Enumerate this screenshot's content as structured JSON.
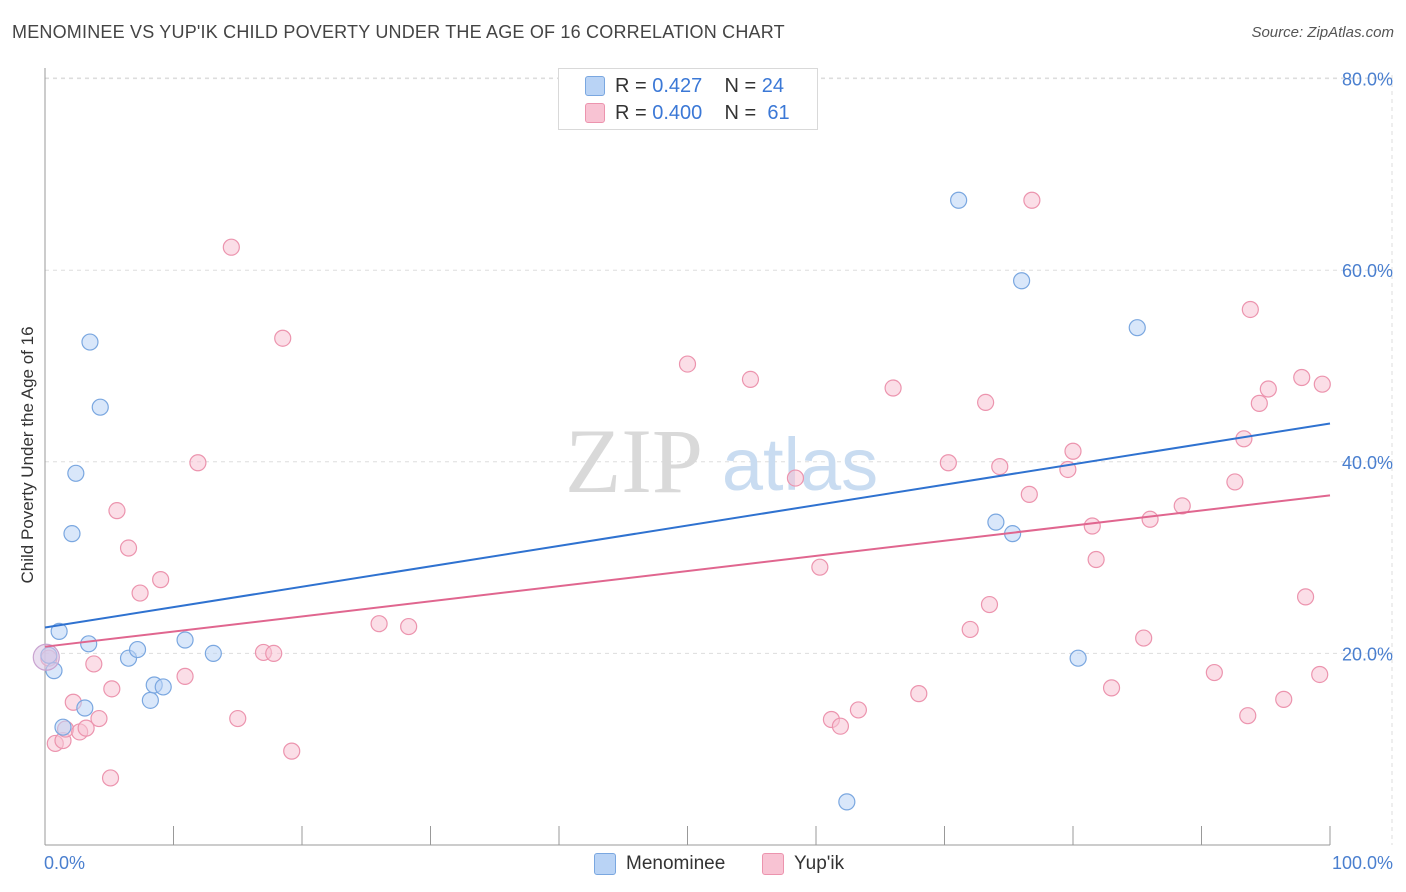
{
  "header": {
    "title": "MENOMINEE VS YUP'IK CHILD POVERTY UNDER THE AGE OF 16 CORRELATION CHART",
    "source": "Source: ZipAtlas.com"
  },
  "watermark": {
    "zip": "ZIP",
    "atlas": "atlas"
  },
  "legend_top": {
    "menominee": {
      "r_label": "R =",
      "r_value": "0.427",
      "n_label": "N =",
      "n_value": "24"
    },
    "yupik": {
      "r_label": "R =",
      "r_value": "0.400",
      "n_label": "N =",
      "n_value": "61"
    }
  },
  "legend_bottom": {
    "menominee": "Menominee",
    "yupik": "Yup'ik"
  },
  "colors": {
    "menominee_fill": "#b9d3f5",
    "menominee_stroke": "#7aa7e0",
    "menominee_line": "#2f72d0",
    "yupik_fill": "#f8c3d3",
    "yupik_stroke": "#ec94ae",
    "yupik_line": "#e0668f",
    "tick_text": "#4a7fcf",
    "grid": "#dddddd"
  },
  "chart_data": {
    "type": "scatter",
    "title": "MENOMINEE VS YUP'IK CHILD POVERTY UNDER THE AGE OF 16 CORRELATION CHART",
    "xlabel": "",
    "ylabel": "Child Poverty Under the Age of 16",
    "xlim": [
      0,
      100
    ],
    "ylim": [
      0,
      82
    ],
    "x_tick_labels": [
      "0.0%",
      "100.0%"
    ],
    "y_ticks": [
      20,
      40,
      60,
      80
    ],
    "y_tick_labels": [
      "20.0%",
      "40.0%",
      "60.0%",
      "80.0%"
    ],
    "grid": true,
    "legend": "top-center",
    "series": [
      {
        "name": "Menominee",
        "r": 0.427,
        "n": 24,
        "trend": {
          "x": [
            0,
            100
          ],
          "y": [
            22.7,
            44.0
          ]
        },
        "points": [
          [
            0.3,
            19.8
          ],
          [
            0.7,
            18.2
          ],
          [
            1.1,
            22.3
          ],
          [
            1.4,
            12.3
          ],
          [
            2.1,
            32.5
          ],
          [
            2.4,
            38.8
          ],
          [
            3.1,
            14.3
          ],
          [
            3.4,
            21.0
          ],
          [
            3.5,
            52.5
          ],
          [
            4.3,
            45.7
          ],
          [
            6.5,
            19.5
          ],
          [
            7.2,
            20.4
          ],
          [
            8.2,
            15.1
          ],
          [
            8.5,
            16.7
          ],
          [
            9.2,
            16.5
          ],
          [
            10.9,
            21.4
          ],
          [
            13.1,
            20.0
          ],
          [
            62.4,
            4.5
          ],
          [
            71.1,
            67.3
          ],
          [
            74.0,
            33.7
          ],
          [
            75.3,
            32.5
          ],
          [
            76.0,
            58.9
          ],
          [
            80.4,
            19.5
          ],
          [
            85.0,
            54.0
          ]
        ]
      },
      {
        "name": "Yup'ik",
        "r": 0.4,
        "n": 61,
        "trend": {
          "x": [
            0,
            100
          ],
          "y": [
            20.7,
            36.5
          ]
        },
        "points": [
          [
            0.3,
            19.5
          ],
          [
            0.8,
            10.6
          ],
          [
            1.4,
            10.9
          ],
          [
            1.6,
            12.1
          ],
          [
            2.2,
            14.9
          ],
          [
            2.7,
            11.8
          ],
          [
            3.2,
            12.2
          ],
          [
            3.8,
            18.9
          ],
          [
            4.2,
            13.2
          ],
          [
            5.1,
            7.0
          ],
          [
            5.2,
            16.3
          ],
          [
            5.6,
            34.9
          ],
          [
            6.5,
            31.0
          ],
          [
            7.4,
            26.3
          ],
          [
            9.0,
            27.7
          ],
          [
            10.9,
            17.6
          ],
          [
            11.9,
            39.9
          ],
          [
            14.5,
            62.4
          ],
          [
            15.0,
            13.2
          ],
          [
            17.0,
            20.1
          ],
          [
            17.8,
            20.0
          ],
          [
            18.5,
            52.9
          ],
          [
            19.2,
            9.8
          ],
          [
            26.0,
            23.1
          ],
          [
            28.3,
            22.8
          ],
          [
            50.0,
            50.2
          ],
          [
            54.9,
            48.6
          ],
          [
            58.4,
            38.3
          ],
          [
            60.3,
            29.0
          ],
          [
            61.2,
            13.1
          ],
          [
            61.9,
            12.4
          ],
          [
            63.3,
            14.1
          ],
          [
            66.0,
            47.7
          ],
          [
            68.0,
            15.8
          ],
          [
            70.3,
            39.9
          ],
          [
            72.0,
            22.5
          ],
          [
            73.2,
            46.2
          ],
          [
            73.5,
            25.1
          ],
          [
            74.3,
            39.5
          ],
          [
            76.6,
            36.6
          ],
          [
            76.8,
            67.3
          ],
          [
            79.6,
            39.2
          ],
          [
            80.0,
            41.1
          ],
          [
            81.5,
            33.3
          ],
          [
            81.8,
            29.8
          ],
          [
            83.0,
            16.4
          ],
          [
            85.5,
            21.6
          ],
          [
            86.0,
            34.0
          ],
          [
            88.5,
            35.4
          ],
          [
            91.0,
            18.0
          ],
          [
            92.6,
            37.9
          ],
          [
            93.3,
            42.4
          ],
          [
            93.6,
            13.5
          ],
          [
            93.8,
            55.9
          ],
          [
            94.5,
            46.1
          ],
          [
            95.2,
            47.6
          ],
          [
            96.4,
            15.2
          ],
          [
            97.8,
            48.8
          ],
          [
            98.1,
            25.9
          ],
          [
            99.2,
            17.8
          ],
          [
            99.4,
            48.1
          ]
        ]
      }
    ]
  }
}
